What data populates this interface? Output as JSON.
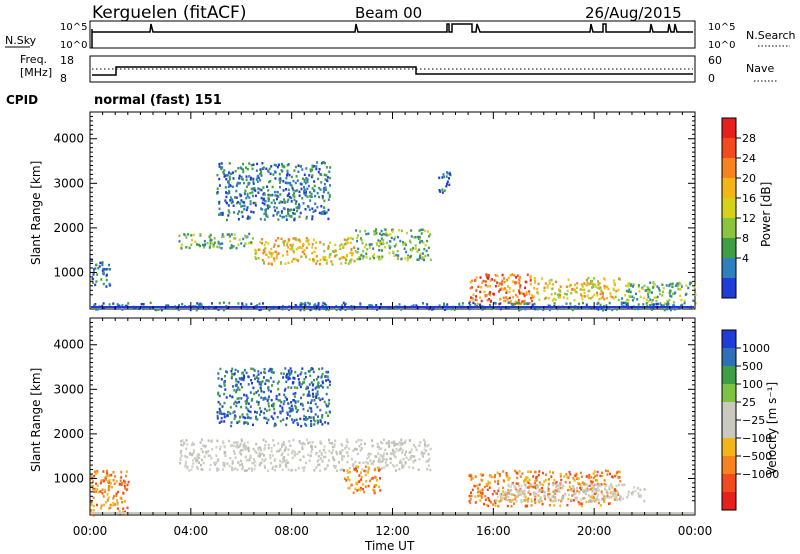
{
  "header": {
    "station": "Kerguelen (fitACF)",
    "beam": "Beam 00",
    "date": "26/Aug/2015"
  },
  "status_panels": {
    "nsky_label": "N.Sky",
    "nsearch_label": "N.Search",
    "nsky_ticks": [
      "10^5",
      "10^0"
    ],
    "nsearch_ticks": [
      "10^5",
      "10^0"
    ],
    "freq_label_1": "Freq.",
    "freq_label_2": "[MHz]",
    "freq_ticks": [
      "18",
      "8"
    ],
    "nave_label": "Nave",
    "nave_ticks": [
      "60",
      "0"
    ],
    "cpid_label": "CPID",
    "cpid_value": "normal (fast) 151"
  },
  "colorbars": {
    "power": {
      "label": "Power [dB]",
      "ticks": [
        "28",
        "24",
        "20",
        "16",
        "12",
        "8",
        "4"
      ],
      "colors": [
        "#e8201c",
        "#f04a1e",
        "#f8821f",
        "#f4b616",
        "#d6d21a",
        "#8bc53f",
        "#3d9e44",
        "#2f7fbf",
        "#1f3cd8"
      ]
    },
    "velocity": {
      "label": "Velocity [m s⁻¹]",
      "ticks": [
        "1000",
        "500",
        "100",
        "25",
        "−25",
        "−100",
        "−500",
        "−1000"
      ],
      "colors": [
        "#1f3cd8",
        "#2f6fb5",
        "#3d9e44",
        "#7dc242",
        "#c9c9c0",
        "#c9c9c0",
        "#f4b616",
        "#f8821f",
        "#f04a1e",
        "#e8201c"
      ]
    }
  },
  "chart_data": [
    {
      "type": "heatmap",
      "panel": "power",
      "xlabel": "Time UT",
      "ylabel": "Slant Range [km]",
      "x_ticks": [
        "00:00",
        "04:00",
        "08:00",
        "12:00",
        "16:00",
        "20:00",
        "00:00"
      ],
      "y_ticks": [
        "4000",
        "3000",
        "2000",
        "1000"
      ],
      "xlim_hours": [
        0,
        24
      ],
      "ylim_km": [
        180,
        4600
      ],
      "regions": [
        {
          "t0": 0.0,
          "t1": 0.8,
          "r0": 700,
          "r1": 1300,
          "level": "low"
        },
        {
          "t0": 3.5,
          "t1": 6.5,
          "r0": 1550,
          "r1": 1900,
          "level": "mid"
        },
        {
          "t0": 6.5,
          "t1": 10.5,
          "r0": 1200,
          "r1": 1800,
          "level": "high"
        },
        {
          "t0": 10.5,
          "t1": 13.5,
          "r0": 1300,
          "r1": 2000,
          "level": "mid"
        },
        {
          "t0": 5.0,
          "t1": 9.5,
          "r0": 2200,
          "r1": 3500,
          "level": "low"
        },
        {
          "t0": 13.8,
          "t1": 14.3,
          "r0": 2800,
          "r1": 3300,
          "level": "low"
        },
        {
          "t0": 15.0,
          "t1": 17.5,
          "r0": 300,
          "r1": 1000,
          "level": "max"
        },
        {
          "t0": 17.5,
          "t1": 21.0,
          "r0": 400,
          "r1": 900,
          "level": "high"
        },
        {
          "t0": 21.0,
          "t1": 24.0,
          "r0": 300,
          "r1": 800,
          "level": "mid"
        },
        {
          "t0": 0.0,
          "t1": 24.0,
          "r0": 180,
          "r1": 350,
          "level": "low"
        }
      ]
    },
    {
      "type": "heatmap",
      "panel": "velocity",
      "xlabel": "Time UT",
      "ylabel": "Slant Range [km]",
      "x_ticks": [
        "00:00",
        "04:00",
        "08:00",
        "12:00",
        "16:00",
        "20:00",
        "00:00"
      ],
      "y_ticks": [
        "4000",
        "3000",
        "2000",
        "1000"
      ],
      "xlim_hours": [
        0,
        24
      ],
      "ylim_km": [
        180,
        4600
      ],
      "regions": [
        {
          "t0": 3.5,
          "t1": 13.5,
          "r0": 1200,
          "r1": 1900,
          "level": "grey"
        },
        {
          "t0": 5.0,
          "t1": 9.5,
          "r0": 2200,
          "r1": 3500,
          "level": "blue"
        },
        {
          "t0": 10.0,
          "t1": 11.5,
          "r0": 700,
          "r1": 1300,
          "level": "orange"
        },
        {
          "t0": 15.0,
          "t1": 21.0,
          "r0": 400,
          "r1": 1200,
          "level": "orange"
        },
        {
          "t0": 16.0,
          "t1": 22.0,
          "r0": 500,
          "r1": 900,
          "level": "grey"
        },
        {
          "t0": 0.0,
          "t1": 1.5,
          "r0": 200,
          "r1": 1200,
          "level": "orange"
        }
      ]
    }
  ]
}
